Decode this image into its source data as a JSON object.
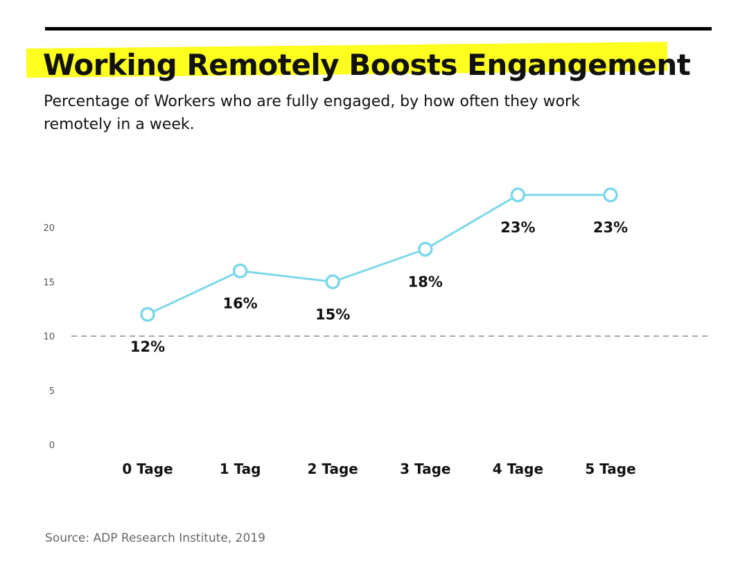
{
  "header": {
    "title": "Working Remotely Boosts Engangement",
    "subtitle": "Percentage of Workers who are fully engaged, by how often they work remotely in a week."
  },
  "colors": {
    "highlight": "#ffff1f",
    "line": "#7dd8ea",
    "rule": "#000000"
  },
  "chart_data": {
    "type": "line",
    "categories": [
      "0 Tage",
      "1 Tag",
      "2 Tage",
      "3 Tage",
      "4 Tage",
      "5 Tage"
    ],
    "values": [
      12,
      16,
      15,
      18,
      23,
      23
    ],
    "data_labels": [
      "12%",
      "16%",
      "15%",
      "18%",
      "23%",
      "23%"
    ],
    "yticks": [
      0,
      5,
      10,
      15,
      20
    ],
    "ylim": [
      0,
      23
    ],
    "reference_line": 10,
    "grid": false,
    "legend": "none"
  },
  "footer": {
    "source": "Source: ADP Research Institute, 2019"
  }
}
